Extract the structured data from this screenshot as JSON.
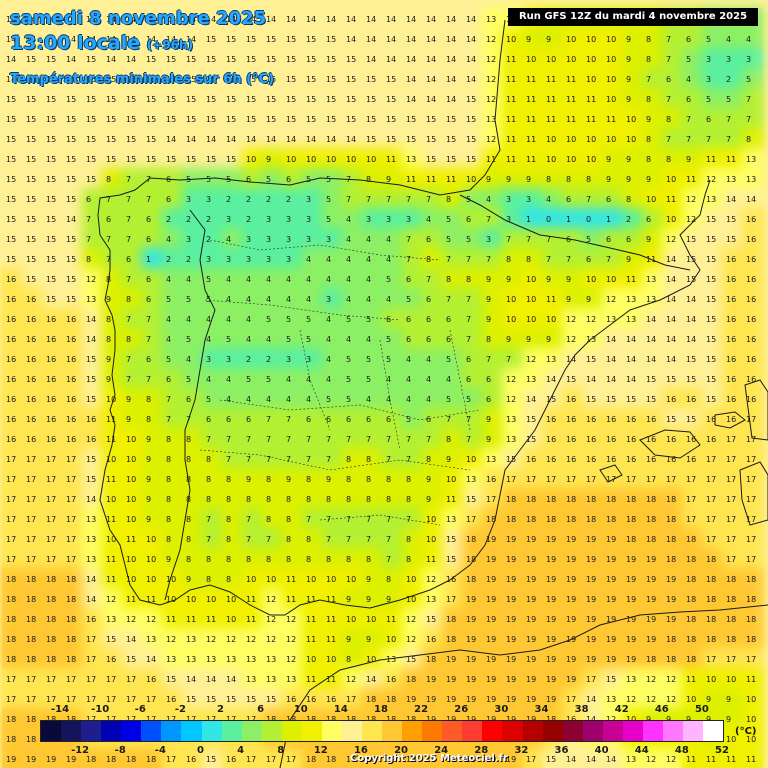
{
  "title": {
    "date": "samedi 8 novembre 2025",
    "time": "13:00 locale",
    "lead": "(+96h)",
    "parameter": "Températures minimales sur 6h (°C)"
  },
  "run_info": "Run GFS 12Z du mardi 4 novembre 2025",
  "copyright": "Copyright 2025 Meteociel.fr",
  "legend": {
    "unit": "(°C)",
    "top_labels": [
      "-14",
      "-10",
      "-6",
      "-2",
      "2",
      "6",
      "10",
      "14",
      "18",
      "22",
      "26",
      "30",
      "34",
      "38",
      "42",
      "46",
      "50"
    ],
    "bottom_labels": [
      "-12",
      "-8",
      "-4",
      "0",
      "4",
      "8",
      "12",
      "16",
      "20",
      "24",
      "28",
      "32",
      "36",
      "40",
      "44",
      "48",
      "52"
    ],
    "colors": [
      "#0a0a3a",
      "#14145a",
      "#1e1e8c",
      "#0000b4",
      "#0000e6",
      "#0050ff",
      "#0096ff",
      "#00c8ff",
      "#32e6e6",
      "#5af0a0",
      "#8cf064",
      "#b4f032",
      "#dcf000",
      "#f0f000",
      "#ffff64",
      "#fff096",
      "#ffe650",
      "#ffc832",
      "#ffa000",
      "#ff7800",
      "#ff5a28",
      "#ff3c32",
      "#ff0000",
      "#dc0000",
      "#b40000",
      "#960000",
      "#8c0032",
      "#a0006e",
      "#c80096",
      "#e600c8",
      "#ff32ff",
      "#ff78ff",
      "#ffb4ff",
      "#ffffff"
    ]
  },
  "temperature_grid": {
    "rows": [
      "14 14 14 14 14 14 14 14 14 14 14 14 14 14 14 14 14 14 14 14 14 14 14 14 13 12 10 9 9 9 9 9 8 7 6 5 4 4",
      "14 14 14 14 14 14 14 14 14 14 15 15 15 15 15 15 15 14 14 14 14 14 14 14 12 10 9 9 10 10 10 9 8 7 6 5 4 4",
      "14 15 15 14 15 14 14 15 15 15 15 15 15 15 15 15 15 15 14 14 14 14 14 14 12 11 10 10 10 10 10 9 8 7 5 3 3 3",
      "14 14 15 15 15 15 15 15 15 15 15 15 15 15 15 15 15 15 15 15 14 14 14 14 12 11 11 11 11 10 10 9 7 6 4 3 2 5",
      "15 15 15 15 15 15 15 15 15 15 15 15 15 15 15 15 15 15 15 15 14 14 14 15 12 11 11 11 11 11 10 9 8 7 6 5 5 7",
      "15 15 15 15 15 15 15 15 15 15 15 15 15 15 15 15 15 15 15 15 15 15 15 15 13 11 11 11 11 11 11 10 9 8 7 6 7 7",
      "15 15 15 15 15 15 15 15 14 14 14 14 14 14 14 14 14 14 15 15 15 15 15 15 12 11 11 10 10 10 10 10 8 7 7 7 7 8",
      "15 15 15 15 15 15 15 15 15 15 15 15 10 9 10 10 10 10 10 11 13 15 15 15 11 11 11 10 10 10 9 9 8 8 9 11 11 13",
      "15 15 15 15 15 8 7 7 6 5 5 5 6 5 6 5 5 7 8 9 11 11 11 10 9 9 9 8 8 8 9 9 9 10 11 12 13 13",
      "15 15 15 15 6 7 7 7 6 3 3 2 2 2 2 3 5 7 7 7 7 7 8 5 4 3 3 4 6 7 6 8 10 11 12 13 14 14",
      "15 15 15 14 7 6 7 6 2 2 2 3 2 3 3 3 5 4 3 3 3 4 5 6 7 3 1 0 1 0 1 2 6 10 12 15 15 16",
      "15 15 15 15 7 7 7 6 4 3 2 4 3 3 3 3 3 4 4 4 7 6 5 5 3 7 7 7 6 5 6 6 9 12 15 15 15 16",
      "15 15 15 15 8 7 6 1 2 2 3 3 3 3 3 4 4 4 4 4 7 8 7 7 7 8 8 7 7 6 7 9 11 14 15 15 16 16",
      "16 15 15 15 12 8 7 6 4 4 5 4 4 4 4 4 4 4 4 5 6 7 8 8 9 9 10 9 9 10 10 11 13 14 15 15 16 16",
      "16 16 15 15 13 9 8 6 5 5 5 4 4 4 4 4 3 4 4 4 5 6 7 7 9 10 10 11 9 9 12 13 13 14 14 15 16 16",
      "16 16 16 16 14 8 7 7 4 4 4 4 4 5 5 5 4 5 5 6 6 6 6 7 9 10 10 10 12 12 13 13 14 14 14 15 16 16",
      "16 16 16 16 14 8 8 7 4 5 4 5 4 4 5 5 4 4 4 5 6 6 6 7 8 9 9 9 12 13 14 14 14 14 14 15 16 16",
      "16 16 16 16 15 9 7 6 5 4 3 3 2 2 3 3 4 5 5 5 4 4 5 6 7 7 12 13 14 15 14 14 14 14 15 15 16 16",
      "16 16 16 16 15 9 7 7 6 5 4 4 5 5 4 4 4 5 5 4 4 4 4 6 6 12 13 14 15 14 14 14 15 15 15 15 16 16",
      "16 16 16 16 15 10 9 8 7 6 5 4 4 4 4 4 5 5 4 4 4 4 5 5 6 12 14 15 16 15 15 15 15 16 16 15 16 16",
      "16 16 16 16 16 11 9 8 7 7 6 6 6 7 7 6 6 6 6 6 5 6 7 7 9 13 15 16 16 16 16 16 16 15 15 16 16 17",
      "16 16 16 16 16 11 10 9 8 8 7 7 7 7 7 7 7 7 7 7 7 7 8 7 9 13 15 16 16 16 16 16 16 16 16 16 17 17",
      "17 17 17 17 15 10 10 9 8 8 8 7 7 7 7 7 7 8 8 7 7 8 9 10 13 15 16 16 16 16 16 16 16 16 16 17 17 17",
      "17 17 17 17 15 11 10 9 8 8 8 8 9 8 9 8 9 8 8 8 8 9 10 13 16 17 17 17 17 17 17 17 17 17 17 17 17 17",
      "17 17 17 17 14 10 10 9 8 8 8 8 8 8 8 8 8 8 8 8 8 9 11 15 17 18 18 18 18 18 18 18 18 18 17 17 17 17",
      "17 17 17 17 13 11 10 9 8 8 7 8 7 8 8 7 7 7 7 7 7 10 13 17 18 18 18 18 18 18 18 18 18 18 17 17 17 17",
      "17 17 17 17 13 10 11 10 8 8 7 8 7 7 8 8 7 7 7 7 8 10 15 18 19 19 19 19 19 19 19 18 18 18 18 17 17 17",
      "17 17 17 17 13 11 10 10 9 8 8 8 8 8 8 8 8 8 8 7 8 11 15 18 19 19 19 19 19 19 19 19 19 18 18 18 17 17",
      "18 18 18 18 14 11 10 10 10 9 8 8 10 10 11 10 10 10 9 8 10 12 16 18 19 19 19 19 19 19 19 19 19 19 18 18 18 18",
      "18 18 18 18 14 12 11 11 10 10 10 10 11 12 11 11 11 9 9 9 10 13 17 19 19 19 19 19 19 19 19 19 19 19 18 18 18 18",
      "18 18 18 18 16 13 12 12 11 11 11 10 11 12 12 11 11 10 10 11 12 15 18 19 19 19 19 19 19 19 19 19 19 19 18 18 18 18",
      "18 18 18 18 17 15 14 13 12 13 12 12 12 12 12 11 11 9 9 10 12 16 18 19 19 19 19 19 19 19 19 19 19 18 18 18 18 18",
      "18 18 18 18 17 16 15 14 13 13 13 13 13 13 12 10 10 8 10 13 15 18 19 19 19 19 19 19 19 19 19 19 18 18 18 17 17 17",
      "17 17 17 17 17 17 17 16 15 14 14 14 13 13 13 11 11 12 14 16 18 19 19 19 19 19 19 19 19 17 15 13 12 12 11 10 10 11",
      "17 17 17 17 17 17 17 17 16 15 15 15 15 15 16 16 16 17 18 18 19 19 19 19 19 19 19 19 17 14 13 12 12 12 10 9 9 10",
      "18 18 18 18 17 17 17 17 17 17 17 17 17 18 18 18 18 18 18 18 18 19 19 19 19 19 19 18 16 14 12 10 9 9 9 9 9 10",
      "18 18 18 18 17 17 17 17 17 17 17 17 17 18 18 18 18 18 18 18 19 19 19 19 19 19 18 16 14 13 13 11 11 10 10 9 10 10",
      "19 19 19 19 18 18 18 18 17 16 15 16 17 17 17 18 18 18 18 19 19 19 19 19 19 19 17 15 14 14 14 13 12 12 11 11 11 11"
    ]
  }
}
